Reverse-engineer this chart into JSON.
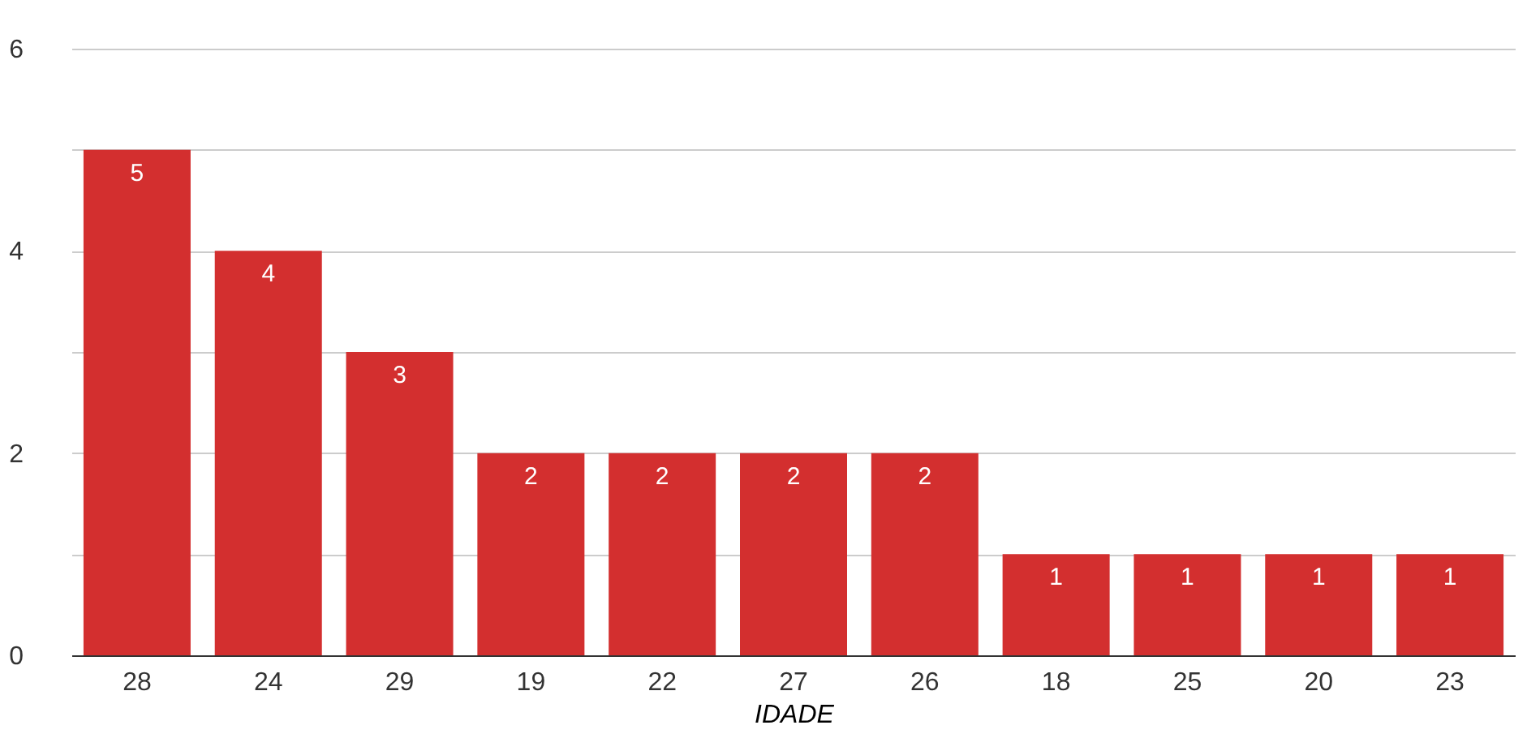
{
  "chart_data": {
    "type": "bar",
    "xlabel": "IDADE",
    "categories": [
      "28",
      "24",
      "29",
      "19",
      "22",
      "27",
      "26",
      "18",
      "25",
      "20",
      "23"
    ],
    "values": [
      5,
      4,
      3,
      2,
      2,
      2,
      2,
      1,
      1,
      1,
      1
    ],
    "color": "#d32f2f",
    "ylim": [
      0,
      6
    ],
    "yticks": [
      0,
      {
        "value": 1,
        "label": null
      },
      2,
      {
        "value": 3,
        "label": null
      },
      4,
      {
        "value": 5,
        "label": null
      },
      6
    ],
    "grid": "y",
    "data_labels": true
  }
}
